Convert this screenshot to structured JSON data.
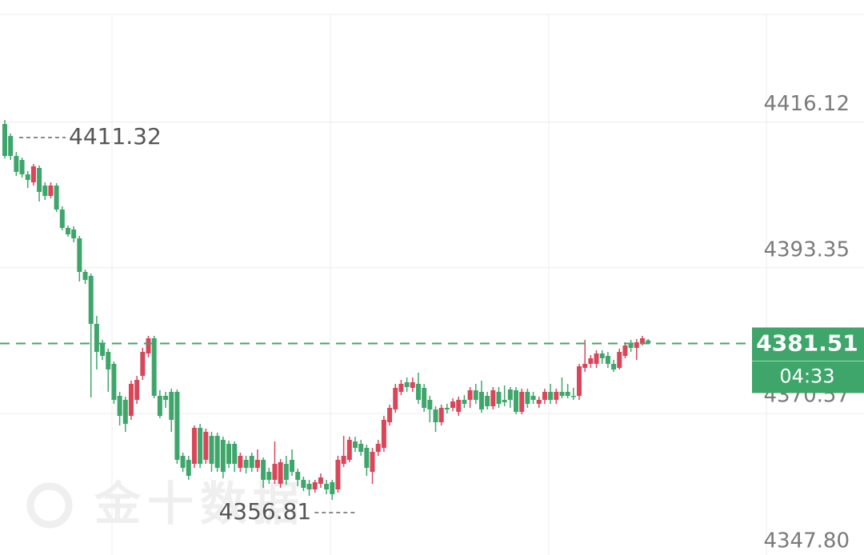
{
  "chart_data": {
    "type": "candlestick",
    "up_color": "#d9465a",
    "down_color": "#3fa66b",
    "grid": true,
    "ylim": [
      4348.45,
      4432.95
    ],
    "yticks": [
      4416.12,
      4393.35,
      4370.57,
      {
        "value": 4347.8,
        "label": "4347.80"
      }
    ],
    "max_label": "4411.32",
    "min_label": "4356.81",
    "countdown": "04:33",
    "watermark": "金十数据",
    "open": [
      4415.825,
      4413.95,
      4410.825,
      4410.2,
      4407.95,
      4406.7,
      4408.95,
      4406.2,
      4404.575,
      4406.2,
      4402.45,
      4399.575,
      4399.325,
      4397.95,
      4392.7,
      4392.075,
      4384.575,
      4381.45,
      4380.2,
      4378.325,
      4373.325,
      4372.7,
      4370.2,
      4372.7,
      4376.45,
      4379.95,
      4382.325,
      4373.325,
      4373.325,
      4373.95,
      4373.95,
      4363.95,
      4363.325,
      4362.7,
      4368.325,
      4363.325,
      4367.075,
      4367.075,
      4366.45,
      4365.825,
      4365.825,
      4362.075,
      4363.325,
      4363.95,
      4362.075,
      4363.325,
      4361.45,
      4360.2,
      4359.575,
      4362.7,
      4363.325,
      4361.45,
      4360.2,
      4359.575,
      4358.7,
      4359.575,
      4359.575,
      4359.825,
      4358.7,
      4362.7,
      4363.325,
      4366.2,
      4365.825,
      4365.2,
      4361.45,
      4364.575,
      4365.2,
      4369.2,
      4371.2,
      4373.95,
      4375.45,
      4374.575,
      4375.2,
      4374.575,
      4372.7,
      4371.2,
      4369.2,
      4371.45,
      4371.45,
      4370.825,
      4372.7,
      4372.7,
      4374.2,
      4373.95,
      4373.325,
      4371.7,
      4373.95,
      4372.7,
      4374.325,
      4374.2,
      4370.825,
      4373.95,
      4373.325,
      4372.075,
      4372.7,
      4373.95,
      4372.7,
      4373.95,
      4373.95,
      4373.325,
      4373.325,
      4377.7,
      4378.325,
      4378.325,
      4379.95,
      4379.575,
      4378.325,
      4377.7,
      4379.575,
      4381.45,
      4380.825,
      4381.45,
      4382.0
    ],
    "high": [
      4416.45,
      4414.325,
      4411.45,
      4410.575,
      4408.45,
      4409.575,
      4409.325,
      4406.7,
      4406.7,
      4406.575,
      4402.95,
      4399.95,
      4399.825,
      4398.325,
      4393.075,
      4392.45,
      4385.825,
      4382.075,
      4380.7,
      4378.7,
      4373.95,
      4373.2,
      4375.7,
      4376.45,
      4380.825,
      4382.7,
      4382.7,
      4374.2,
      4373.95,
      4374.45,
      4374.325,
      4364.45,
      4363.95,
      4368.7,
      4368.95,
      4368.2,
      4367.7,
      4367.575,
      4366.95,
      4366.325,
      4366.2,
      4364.45,
      4363.95,
      4364.45,
      4364.95,
      4363.7,
      4362.075,
      4366.2,
      4363.45,
      4363.95,
      4364.95,
      4361.95,
      4360.7,
      4360.2,
      4360.2,
      4361.2,
      4360.2,
      4360.2,
      4363.95,
      4367.075,
      4366.95,
      4366.95,
      4366.45,
      4365.7,
      4365.2,
      4366.45,
      4370.2,
      4371.95,
      4375.2,
      4375.825,
      4376.2,
      4376.2,
      4376.95,
      4375.2,
      4373.325,
      4371.7,
      4371.95,
      4372.075,
      4372.95,
      4373.2,
      4373.45,
      4374.7,
      4375.2,
      4375.7,
      4373.95,
      4374.7,
      4374.7,
      4374.95,
      4374.7,
      4374.7,
      4374.45,
      4374.45,
      4373.95,
      4373.2,
      4374.45,
      4375.2,
      4374.45,
      4376.2,
      4375.2,
      4374.575,
      4378.325,
      4382.075,
      4379.7,
      4380.45,
      4380.45,
      4380.2,
      4378.95,
      4380.7,
      4381.7,
      4382.075,
      4382.2,
      4382.7,
      4382.2
    ],
    "low": [
      4410.45,
      4410.2,
      4407.7,
      4407.45,
      4405.825,
      4406.2,
      4403.7,
      4403.95,
      4404.2,
      4402.075,
      4399.2,
      4398.2,
      4397.325,
      4391.2,
      4390.825,
      4373.075,
      4377.45,
      4378.95,
      4373.95,
      4372.075,
      4368.7,
      4367.7,
      4369.575,
      4372.075,
      4375.825,
      4379.325,
      4372.95,
      4369.825,
      4371.45,
      4367.7,
      4362.7,
      4361.45,
      4360.2,
      4362.075,
      4362.075,
      4362.7,
      4361.45,
      4361.45,
      4360.45,
      4362.075,
      4361.45,
      4361.45,
      4361.2,
      4361.45,
      4361.45,
      4358.95,
      4359.575,
      4359.575,
      4358.95,
      4359.45,
      4360.825,
      4359.2,
      4358.45,
      4357.7,
      4358.2,
      4358.95,
      4357.95,
      4357.075,
      4358.2,
      4362.2,
      4362.95,
      4364.575,
      4363.95,
      4360.825,
      4359.575,
      4363.95,
      4364.575,
      4368.7,
      4370.7,
      4373.45,
      4373.95,
      4373.95,
      4372.075,
      4370.825,
      4369.2,
      4367.7,
      4368.7,
      4370.575,
      4370.95,
      4370.2,
      4371.45,
      4371.45,
      4372.075,
      4370.7,
      4371.2,
      4371.2,
      4371.45,
      4371.7,
      4371.45,
      4370.45,
      4370.45,
      4371.45,
      4372.075,
      4371.45,
      4372.075,
      4372.075,
      4372.075,
      4372.95,
      4372.95,
      4372.7,
      4372.7,
      4377.075,
      4377.7,
      4377.7,
      4378.325,
      4377.7,
      4377.075,
      4377.45,
      4379.2,
      4380.2,
      4378.95,
      4381.2,
      4381.45
    ],
    "close": [
      4410.825,
      4410.825,
      4408.325,
      4407.95,
      4407.075,
      4409.2,
      4405.2,
      4404.575,
      4406.2,
      4402.45,
      4399.575,
      4398.575,
      4397.95,
      4392.7,
      4391.45,
      4384.575,
      4380.2,
      4379.575,
      4377.45,
      4372.7,
      4370.2,
      4368.95,
      4375.2,
      4375.825,
      4380.2,
      4382.325,
      4373.325,
      4370.2,
      4372.7,
      4369.575,
      4363.325,
      4362.075,
      4360.825,
      4368.325,
      4362.7,
      4367.7,
      4362.7,
      4362.075,
      4361.45,
      4362.7,
      4362.7,
      4363.95,
      4362.075,
      4362.075,
      4363.325,
      4360.2,
      4360.2,
      4362.7,
      4362.95,
      4360.2,
      4361.45,
      4360.2,
      4358.95,
      4358.7,
      4359.825,
      4360.575,
      4358.7,
      4357.95,
      4363.325,
      4363.95,
      4366.45,
      4365.2,
      4364.575,
      4362.075,
      4364.575,
      4365.825,
      4369.575,
      4371.45,
      4374.575,
      4375.2,
      4374.7,
      4375.45,
      4372.7,
      4371.45,
      4371.2,
      4369.2,
      4371.45,
      4371.2,
      4372.45,
      4372.7,
      4372.075,
      4374.2,
      4372.7,
      4371.2,
      4371.7,
      4374.2,
      4372.075,
      4372.325,
      4372.7,
      4370.825,
      4373.95,
      4372.075,
      4372.7,
      4372.7,
      4373.95,
      4372.7,
      4373.95,
      4373.325,
      4373.325,
      4373.325,
      4377.95,
      4378.325,
      4379.2,
      4379.95,
      4379.2,
      4378.325,
      4377.45,
      4380.2,
      4381.2,
      4380.825,
      4381.7,
      4382.325,
      4381.51
    ]
  }
}
